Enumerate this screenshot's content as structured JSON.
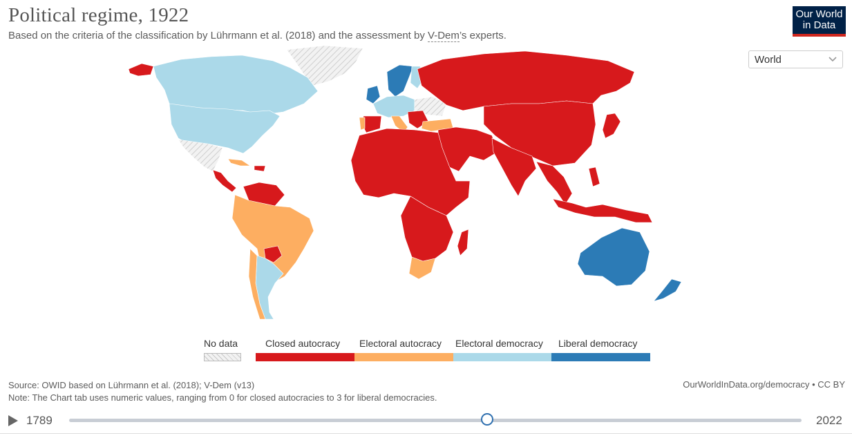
{
  "header": {
    "title": "Political regime, 1922",
    "subtitle_prefix": "Based on the criteria of the classification by Lührmann et al. (2018) and the assessment by ",
    "subtitle_link": "V-Dem",
    "subtitle_suffix": "’s experts.",
    "logo_line1": "Our World",
    "logo_line2": "in Data"
  },
  "region_select": {
    "value": "World"
  },
  "legend": {
    "no_data": "No data",
    "items": [
      {
        "label": "Closed autocracy",
        "color": "#d7191c"
      },
      {
        "label": "Electoral autocracy",
        "color": "#fdae61"
      },
      {
        "label": "Electoral democracy",
        "color": "#abd9e9"
      },
      {
        "label": "Liberal democracy",
        "color": "#2c7bb6"
      }
    ]
  },
  "footer": {
    "source": "Source: OWID based on Lührmann et al. (2018); V-Dem (v13)",
    "note": "Note: The Chart tab uses numeric values, ranging from 0 for closed autocracies to 3 for liberal democracies.",
    "credit": "OurWorldInData.org/democracy • CC BY"
  },
  "timeline": {
    "start": "1789",
    "end": "2022",
    "selected_year": 1922
  },
  "colors": {
    "red": "#d7191c",
    "orange": "#fdae61",
    "lightblue": "#abd9e9",
    "blue": "#2c7bb6",
    "nodata": "#e8e8e8"
  }
}
